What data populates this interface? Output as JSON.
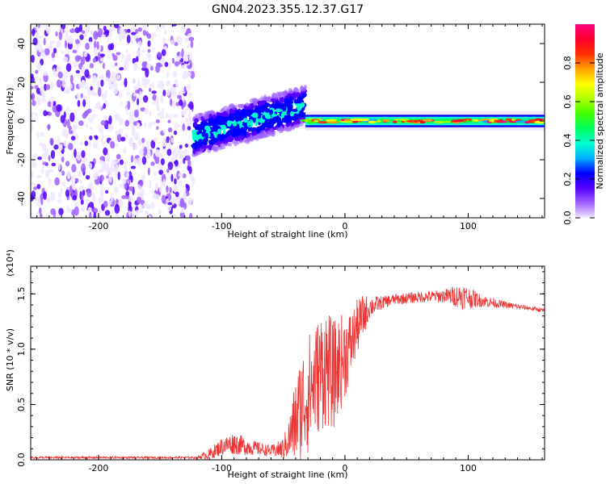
{
  "page_title": "GN04.2023.355.12.37.G17",
  "colorbar": {
    "label": "Normalized spectral amplitude",
    "ticks": [
      "0.0",
      "0.2",
      "0.4",
      "0.6",
      "0.8"
    ],
    "tick_values": [
      0.0,
      0.2,
      0.4,
      0.6,
      0.8
    ],
    "range": [
      0,
      1
    ],
    "colormap": [
      "#f0e8ff",
      "#a060ff",
      "#5500ff",
      "#0000ff",
      "#00b0ff",
      "#00ffd0",
      "#00ff60",
      "#40ff00",
      "#b0ff00",
      "#ffff00",
      "#ffa000",
      "#ff3000",
      "#ff0030",
      "#ff0080"
    ]
  },
  "chart_data": [
    {
      "type": "heatmap",
      "title": "GN04.2023.355.12.37.G17",
      "xlabel": "Height of straight line (km)",
      "ylabel": "Frequency (Hz)",
      "xlim": [
        -255,
        162
      ],
      "ylim": [
        -50,
        50
      ],
      "xticks": [
        -200,
        -100,
        0,
        100
      ],
      "xtick_labels": [
        "-200",
        "-100",
        "0",
        "100"
      ],
      "yticks": [
        -40,
        -20,
        0,
        20,
        40
      ],
      "ytick_labels": [
        "-40",
        "-20",
        "0",
        "20",
        "40"
      ],
      "grid": false,
      "regions": [
        {
          "x_range": [
            -255,
            -123
          ],
          "freq_range": [
            -50,
            50
          ],
          "amplitude": [
            0.0,
            0.15
          ],
          "note": "scattered noise"
        },
        {
          "x_range": [
            -123,
            -32
          ],
          "freq_center_start": -8,
          "freq_center_end": 8,
          "amplitude": [
            0.1,
            0.4
          ],
          "note": "diffuse ascending band"
        },
        {
          "x_range": [
            -32,
            162
          ],
          "freq_center": 0,
          "amplitude": [
            0.3,
            1.0
          ],
          "note": "narrow band at 0 Hz"
        }
      ]
    },
    {
      "type": "line",
      "xlabel": "Height of straight line (km)",
      "ylabel": "SNR (10 * v/v)",
      "y_multiplier": "(x10⁴)",
      "xlim": [
        -255,
        162
      ],
      "ylim": [
        0,
        1.75
      ],
      "xticks": [
        -200,
        -100,
        0,
        100
      ],
      "xtick_labels": [
        "-200",
        "-100",
        "0",
        "100"
      ],
      "yticks": [
        0.0,
        0.5,
        1.0,
        1.5
      ],
      "ytick_labels": [
        "0.0",
        "0.5",
        "1.0",
        "1.5"
      ],
      "color": "#ee3333",
      "grid": false,
      "series": [
        {
          "x": [
            -255,
            -200,
            -150,
            -120,
            -110,
            -100,
            -90,
            -80,
            -70,
            -60,
            -50,
            -45,
            -40,
            -35,
            -30,
            -25,
            -20,
            -15,
            -10,
            -5,
            0,
            5,
            10,
            15,
            20,
            30,
            40,
            60,
            80,
            95,
            110,
            130,
            150,
            162
          ],
          "y": [
            0.02,
            0.02,
            0.02,
            0.02,
            0.05,
            0.12,
            0.15,
            0.12,
            0.1,
            0.08,
            0.1,
            0.2,
            0.35,
            0.5,
            0.6,
            0.7,
            0.8,
            0.85,
            0.75,
            0.85,
            0.95,
            1.05,
            1.2,
            1.3,
            1.38,
            1.42,
            1.45,
            1.47,
            1.48,
            1.48,
            1.44,
            1.4,
            1.37,
            1.35
          ],
          "noise": [
            0.01,
            0.01,
            0.01,
            0.01,
            0.05,
            0.08,
            0.1,
            0.08,
            0.06,
            0.05,
            0.1,
            0.2,
            0.4,
            0.5,
            0.55,
            0.5,
            0.55,
            0.55,
            0.5,
            0.45,
            0.4,
            0.3,
            0.25,
            0.2,
            0.1,
            0.06,
            0.05,
            0.05,
            0.06,
            0.12,
            0.06,
            0.03,
            0.02,
            0.02
          ]
        }
      ]
    }
  ]
}
